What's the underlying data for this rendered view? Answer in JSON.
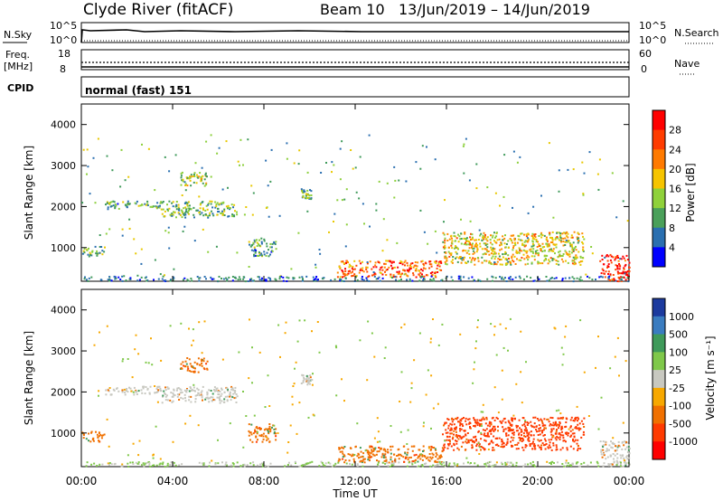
{
  "header": {
    "station": "Clyde River (fitACF)",
    "beam": "Beam 10",
    "dates": "13/Jun/2019 – 14/Jun/2019"
  },
  "status_panels": {
    "nsky_label": "N.Sky",
    "nsky_ticks": [
      "10^5",
      "10^0"
    ],
    "nsearch_label": "N.Search",
    "nsearch_ticks": [
      "10^5",
      "10^0"
    ],
    "freq_label_1": "Freq.",
    "freq_label_2": "[MHz]",
    "freq_ticks": [
      "18",
      "8"
    ],
    "nave_label": "Nave",
    "nave_ticks": [
      "60",
      "0"
    ],
    "cpid_label": "CPID",
    "cpid_value": "normal (fast) 151"
  },
  "chart_data": [
    {
      "type": "heatmap",
      "title": "Power",
      "ylabel": "Slant Range [km]",
      "xlabel": "",
      "ylim": [
        180,
        4500
      ],
      "yticks": [
        "4000",
        "3000",
        "2000",
        "1000"
      ],
      "x_range_hours": [
        0,
        24
      ],
      "colorbar_label": "Power [dB]",
      "colorbar_ticks": [
        "28",
        "24",
        "20",
        "16",
        "12",
        "8",
        "4"
      ],
      "colorbar_colors": [
        "#ff0000",
        "#ff3c00",
        "#ff7a00",
        "#f6c400",
        "#8fd13a",
        "#4aa05a",
        "#2a6fb0",
        "#0000ff"
      ],
      "regions": [
        {
          "t": [
            0.0,
            1.0
          ],
          "r": [
            800,
            1050
          ],
          "value": 12
        },
        {
          "t": [
            1.0,
            3.5
          ],
          "r": [
            1950,
            2150
          ],
          "value": 10
        },
        {
          "t": [
            3.5,
            6.8
          ],
          "r": [
            1750,
            2150
          ],
          "value": 12
        },
        {
          "t": [
            4.3,
            5.5
          ],
          "r": [
            2500,
            2850
          ],
          "value": 14
        },
        {
          "t": [
            7.3,
            8.5
          ],
          "r": [
            800,
            1250
          ],
          "value": 10
        },
        {
          "t": [
            9.6,
            10.1
          ],
          "r": [
            2200,
            2450
          ],
          "value": 12
        },
        {
          "t": [
            11.2,
            15.8
          ],
          "r": [
            300,
            700
          ],
          "value": 24
        },
        {
          "t": [
            15.8,
            22.0
          ],
          "r": [
            600,
            1400
          ],
          "value": 18
        },
        {
          "t": [
            22.7,
            24.0
          ],
          "r": [
            200,
            850
          ],
          "value": 30
        }
      ]
    },
    {
      "type": "heatmap",
      "title": "Velocity",
      "ylabel": "Slant Range [km]",
      "xlabel": "Time UT",
      "ylim": [
        180,
        4500
      ],
      "yticks": [
        "4000",
        "3000",
        "2000",
        "1000"
      ],
      "x_range_hours": [
        0,
        24
      ],
      "xticks": [
        "00:00",
        "04:00",
        "08:00",
        "12:00",
        "16:00",
        "20:00",
        "00:00"
      ],
      "colorbar_label": "Velocity [m s⁻¹]",
      "colorbar_ticks": [
        "1000",
        "500",
        "100",
        "25",
        "-25",
        "-100",
        "-500",
        "-1000"
      ],
      "colorbar_colors": [
        "#1c3a9e",
        "#3a7cc0",
        "#3f9a5a",
        "#7fc84a",
        "#c8c8c0",
        "#f7a800",
        "#f07000",
        "#ff3a00",
        "#ff0000"
      ],
      "regions": [
        {
          "t": [
            0.0,
            1.0
          ],
          "r": [
            800,
            1050
          ],
          "value": -100
        },
        {
          "t": [
            1.0,
            3.5
          ],
          "r": [
            1950,
            2150
          ],
          "value": 0
        },
        {
          "t": [
            3.5,
            6.8
          ],
          "r": [
            1750,
            2150
          ],
          "value": 0
        },
        {
          "t": [
            4.3,
            5.5
          ],
          "r": [
            2500,
            2850
          ],
          "value": -100
        },
        {
          "t": [
            7.3,
            8.5
          ],
          "r": [
            800,
            1250
          ],
          "value": -100
        },
        {
          "t": [
            9.6,
            10.1
          ],
          "r": [
            2200,
            2450
          ],
          "value": 0
        },
        {
          "t": [
            11.2,
            15.8
          ],
          "r": [
            300,
            700
          ],
          "value": -100
        },
        {
          "t": [
            15.8,
            22.0
          ],
          "r": [
            600,
            1400
          ],
          "value": -500
        },
        {
          "t": [
            22.7,
            24.0
          ],
          "r": [
            200,
            850
          ],
          "value": 0
        }
      ]
    }
  ]
}
